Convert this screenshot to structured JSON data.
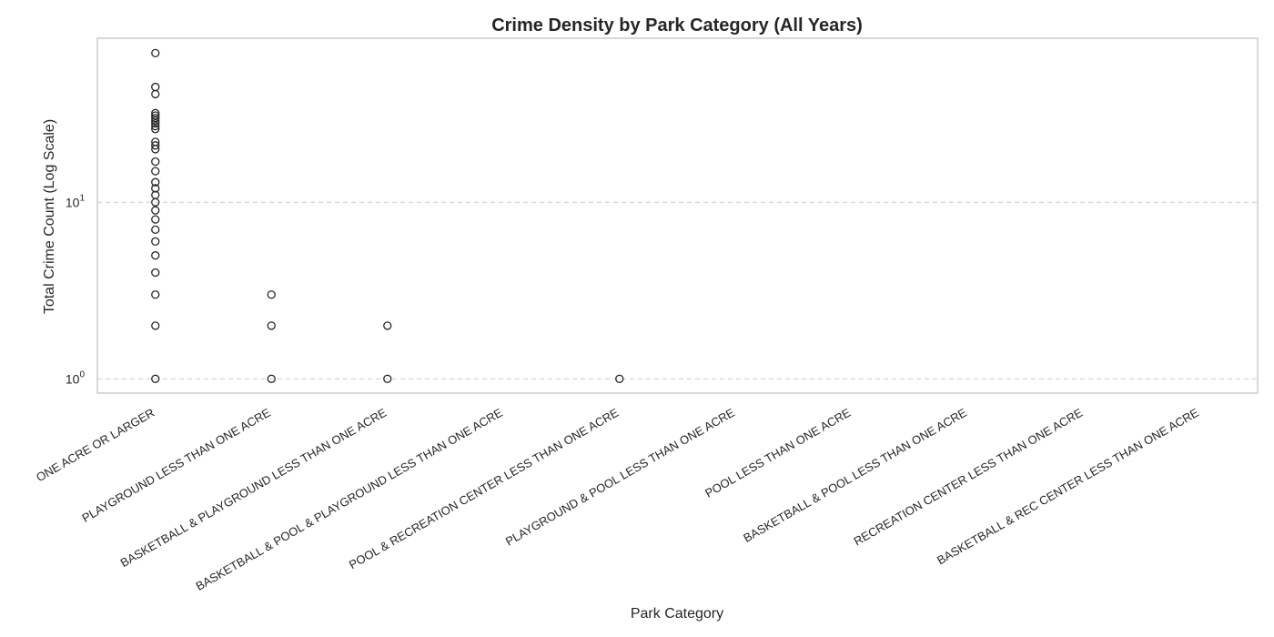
{
  "chart_data": {
    "type": "scatter",
    "title": "Crime Density by Park Category (All Years)",
    "xlabel": "Park Category",
    "ylabel": "Total Crime Count (Log Scale)",
    "y_scale": "log",
    "ylim": [
      0.83,
      85
    ],
    "y_ticks": [
      {
        "value": 1,
        "base": "10",
        "exponent": "0"
      },
      {
        "value": 10,
        "base": "10",
        "exponent": "1"
      }
    ],
    "grid": "y-dashed",
    "categories": [
      "ONE ACRE OR LARGER",
      "PLAYGROUND LESS THAN ONE ACRE",
      "BASKETBALL & PLAYGROUND LESS THAN ONE ACRE",
      "BASKETBALL & POOL & PLAYGROUND LESS THAN ONE ACRE",
      "POOL & RECREATION CENTER LESS THAN ONE ACRE",
      "PLAYGROUND & POOL LESS THAN ONE ACRE",
      "POOL LESS THAN ONE ACRE",
      "BASKETBALL & POOL LESS THAN ONE ACRE",
      "RECREATION CENTER LESS THAN ONE ACRE",
      "BASKETBALL & REC CENTER LESS THAN ONE ACRE"
    ],
    "points": [
      {
        "category": 0,
        "values": [
          70,
          45,
          41,
          32,
          31,
          30,
          29,
          28,
          27,
          26,
          22,
          21,
          20,
          17,
          15,
          13,
          12,
          11,
          10,
          9,
          8,
          7,
          6,
          5,
          4,
          3,
          2,
          1
        ]
      },
      {
        "category": 1,
        "values": [
          3,
          2,
          1
        ]
      },
      {
        "category": 2,
        "values": [
          2,
          1
        ]
      },
      {
        "category": 3,
        "values": []
      },
      {
        "category": 4,
        "values": [
          1
        ]
      },
      {
        "category": 5,
        "values": []
      },
      {
        "category": 6,
        "values": []
      },
      {
        "category": 7,
        "values": []
      },
      {
        "category": 8,
        "values": []
      },
      {
        "category": 9,
        "values": []
      }
    ],
    "colors": {
      "marker_edge": "#262626",
      "grid": "#cccccc",
      "frame": "#cccccc"
    }
  }
}
